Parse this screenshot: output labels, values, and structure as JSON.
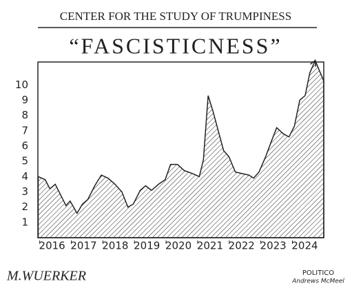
{
  "chart_data": {
    "type": "area",
    "header": "CENTER FOR THE STUDY OF TRUMPINESS",
    "title": "“FASCISTICNESS”",
    "signature": "M.WUERKER",
    "credits": [
      "POLITICO",
      "Andrews McMeel"
    ],
    "x": [
      2015.56,
      2015.78,
      2015.93,
      2016.1,
      2016.27,
      2016.44,
      2016.57,
      2016.79,
      2016.96,
      2017.13,
      2017.35,
      2017.56,
      2017.77,
      2017.99,
      2018.21,
      2018.4,
      2018.57,
      2018.79,
      2018.96,
      2019.15,
      2019.37,
      2019.58,
      2019.75,
      2019.97,
      2020.18,
      2020.44,
      2020.66,
      2020.79,
      2020.94,
      2021.09,
      2021.26,
      2021.43,
      2021.6,
      2021.8,
      2022.01,
      2022.23,
      2022.38,
      2022.55,
      2022.76,
      2022.94,
      2023.11,
      2023.32,
      2023.5,
      2023.67,
      2023.84,
      2024.01,
      2024.16,
      2024.33
    ],
    "values": [
      4.0,
      3.8,
      3.2,
      3.5,
      2.8,
      2.1,
      2.4,
      1.6,
      2.2,
      2.5,
      3.4,
      4.1,
      3.9,
      3.5,
      3.0,
      2.0,
      2.2,
      3.1,
      3.4,
      3.1,
      3.5,
      3.8,
      4.8,
      4.8,
      4.4,
      4.2,
      4.0,
      5.1,
      9.3,
      8.3,
      7.0,
      5.7,
      5.3,
      4.3,
      4.2,
      4.1,
      3.9,
      4.3,
      5.3,
      6.3,
      7.2,
      6.8,
      6.6,
      7.3,
      9.0,
      9.3,
      10.8,
      11.6
    ],
    "color": "#222222",
    "xlim": [
      2015.55,
      2024.6
    ],
    "xticks": [
      2016,
      2017,
      2018,
      2019,
      2020,
      2021,
      2022,
      2023,
      2024
    ],
    "ylim": [
      0,
      11.5
    ],
    "yticks": [
      1,
      2,
      3,
      4,
      5,
      6,
      7,
      8,
      9,
      10
    ],
    "grid": false
  }
}
